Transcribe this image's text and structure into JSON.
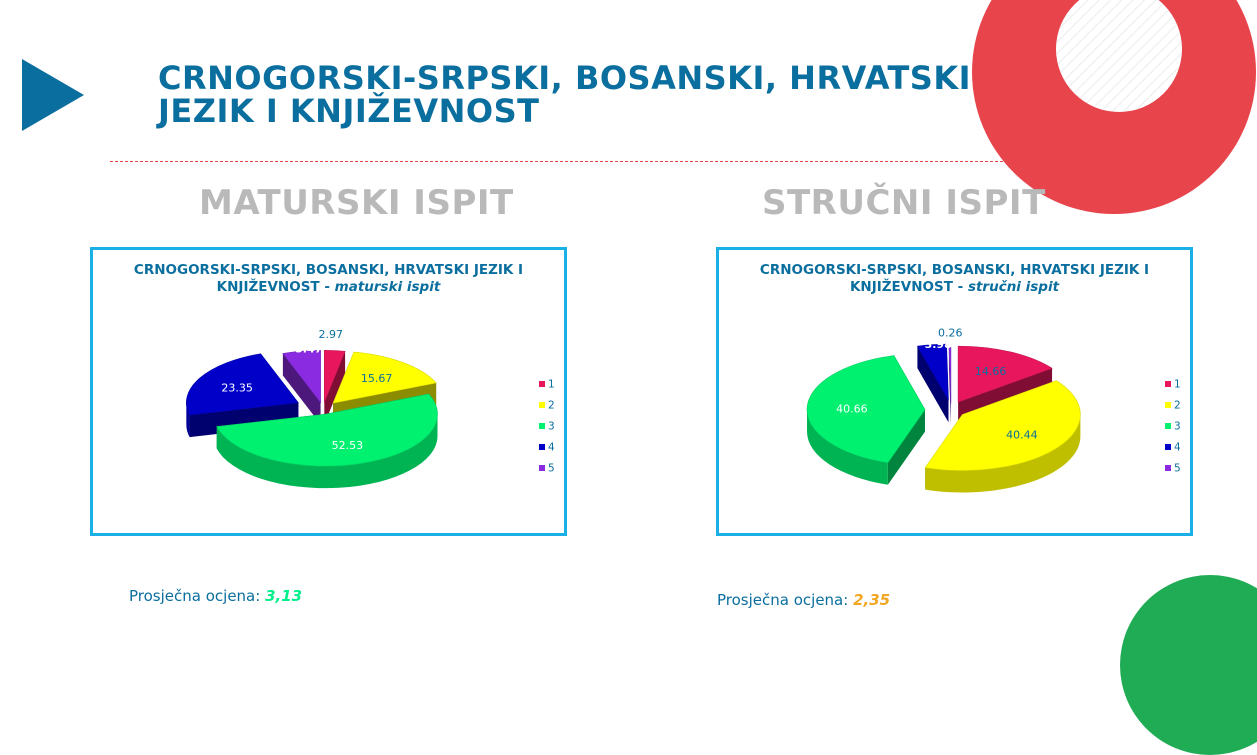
{
  "slide": {
    "title_line1": "CRNOGORSKI-SRPSKI, BOSANSKI, HRVATSKI",
    "title_line2": "JEZIK I KNJIŽEVNOST"
  },
  "sections": [
    {
      "heading": "MATURSKI ISPIT",
      "average": {
        "label": "Prosječna ocjena: ",
        "value": "3,13",
        "color": "#00ef8c"
      }
    },
    {
      "heading": "STRUČNI ISPIT",
      "average": {
        "label": "Prosječna ocjena: ",
        "value": "2,35",
        "color": "#f2a622"
      }
    }
  ],
  "colors": {
    "accent_blue": "#0a6e9e",
    "accent_red": "#e8444c",
    "accent_green": "#20ab55",
    "chart_border": "#1ab0e6",
    "heading_gray": "#b9b9b9"
  },
  "chart_data": [
    {
      "type": "pie",
      "variant": "3d-exploded",
      "title": "CRNOGORSKI-SRPSKI, BOSANSKI, HRVATSKI JEZIK I KNJIŽEVNOST - maturski ispit",
      "title_main": "CRNOGORSKI-SRPSKI, BOSANSKI, HRVATSKI JEZIK I KNJIŽEVNOST - ",
      "title_italic": "maturski ispit",
      "categories": [
        "1",
        "2",
        "3",
        "4",
        "5"
      ],
      "values": [
        2.97,
        15.67,
        52.53,
        23.35,
        5.47
      ],
      "data_labels": [
        "2.97",
        "15.67",
        "52.53",
        "23.35",
        "5.47"
      ],
      "colors": [
        "#e8175d",
        "#ffff00",
        "#00f070",
        "#0000c8",
        "#8a2be2"
      ],
      "legend_position": "right"
    },
    {
      "type": "pie",
      "variant": "3d-exploded",
      "title": "CRNOGORSKI-SRPSKI, BOSANSKI, HRVATSKI JEZIK I KNJIŽEVNOST - stručni ispit",
      "title_main": "CRNOGORSKI-SRPSKI, BOSANSKI, HRVATSKI JEZIK I KNJIŽEVNOST - ",
      "title_italic": "stručni ispit",
      "categories": [
        "1",
        "2",
        "3",
        "4",
        "5"
      ],
      "values": [
        14.66,
        40.44,
        40.66,
        3.98,
        0.26
      ],
      "data_labels": [
        "14.66",
        "40.44",
        "40.66",
        "3.98",
        "0.26"
      ],
      "colors": [
        "#e8175d",
        "#ffff00",
        "#00f070",
        "#0000c8",
        "#8a2be2"
      ],
      "legend_position": "right"
    }
  ]
}
